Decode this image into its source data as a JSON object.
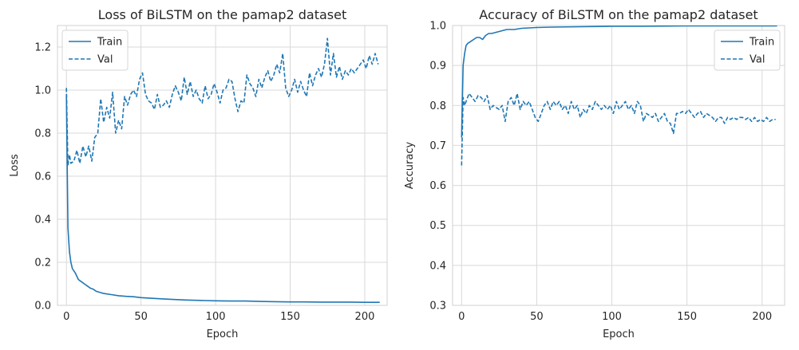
{
  "chart_data": [
    {
      "type": "line",
      "title": "Loss of BiLSTM on the pamap2 dataset",
      "xlabel": "Epoch",
      "ylabel": "Loss",
      "xlim": [
        -6,
        215
      ],
      "ylim": [
        0.0,
        1.3
      ],
      "xticks": [
        0,
        50,
        100,
        150,
        200
      ],
      "yticks": [
        0.0,
        0.2,
        0.4,
        0.6,
        0.8,
        1.0,
        1.2
      ],
      "tick_decimals": 1,
      "grid": true,
      "legend_position": "upper left",
      "series": [
        {
          "name": "Train",
          "style": "solid",
          "color": "#1f77b4",
          "x": [
            0,
            1,
            2,
            3,
            4,
            5,
            6,
            8,
            10,
            12,
            14,
            16,
            18,
            20,
            25,
            30,
            35,
            40,
            45,
            50,
            60,
            70,
            80,
            90,
            100,
            110,
            120,
            130,
            140,
            150,
            160,
            170,
            180,
            190,
            200,
            210
          ],
          "y": [
            0.98,
            0.36,
            0.25,
            0.2,
            0.17,
            0.16,
            0.15,
            0.12,
            0.11,
            0.1,
            0.09,
            0.08,
            0.075,
            0.065,
            0.055,
            0.05,
            0.045,
            0.042,
            0.04,
            0.036,
            0.032,
            0.028,
            0.025,
            0.023,
            0.021,
            0.02,
            0.02,
            0.018,
            0.017,
            0.016,
            0.016,
            0.015,
            0.015,
            0.015,
            0.014,
            0.014
          ]
        },
        {
          "name": "Val",
          "style": "dashed",
          "color": "#1f77b4",
          "x": [
            0,
            1,
            2,
            3,
            5,
            7,
            9,
            11,
            13,
            15,
            17,
            19,
            21,
            23,
            25,
            27,
            29,
            31,
            33,
            35,
            37,
            39,
            41,
            43,
            45,
            47,
            49,
            51,
            53,
            55,
            57,
            59,
            61,
            63,
            65,
            67,
            69,
            71,
            73,
            75,
            77,
            79,
            81,
            83,
            85,
            87,
            89,
            91,
            93,
            95,
            97,
            99,
            101,
            103,
            105,
            107,
            109,
            111,
            113,
            115,
            117,
            119,
            121,
            123,
            125,
            127,
            129,
            131,
            133,
            135,
            137,
            139,
            141,
            143,
            145,
            147,
            149,
            151,
            153,
            155,
            157,
            159,
            161,
            163,
            165,
            167,
            169,
            171,
            173,
            175,
            177,
            179,
            181,
            183,
            185,
            187,
            189,
            191,
            193,
            195,
            197,
            199,
            201,
            203,
            205,
            207,
            209
          ],
          "y": [
            1.01,
            0.65,
            0.7,
            0.66,
            0.67,
            0.72,
            0.66,
            0.74,
            0.69,
            0.74,
            0.67,
            0.78,
            0.8,
            0.96,
            0.85,
            0.92,
            0.87,
            0.99,
            0.8,
            0.86,
            0.82,
            0.97,
            0.93,
            0.98,
            1.0,
            0.97,
            1.05,
            1.08,
            0.98,
            0.95,
            0.94,
            0.91,
            0.98,
            0.92,
            0.93,
            0.95,
            0.92,
            0.98,
            1.02,
            0.99,
            0.95,
            1.06,
            0.98,
            1.04,
            0.97,
            1.0,
            0.96,
            0.94,
            1.02,
            0.96,
            0.98,
            1.03,
            0.99,
            0.94,
            1.0,
            1.01,
            1.05,
            1.04,
            0.96,
            0.9,
            0.95,
            0.94,
            1.07,
            1.03,
            1.01,
            0.97,
            1.05,
            1.01,
            1.06,
            1.09,
            1.04,
            1.07,
            1.12,
            1.08,
            1.17,
            1.01,
            0.97,
            1.0,
            1.05,
            0.99,
            1.04,
            1.0,
            0.97,
            1.08,
            1.02,
            1.07,
            1.1,
            1.06,
            1.12,
            1.24,
            1.07,
            1.17,
            1.06,
            1.11,
            1.05,
            1.09,
            1.07,
            1.1,
            1.08,
            1.1,
            1.12,
            1.14,
            1.1,
            1.16,
            1.12,
            1.17,
            1.12
          ]
        }
      ]
    },
    {
      "type": "line",
      "title": "Accuracy of BiLSTM on the pamap2 dataset",
      "xlabel": "Epoch",
      "ylabel": "Accuracy",
      "xlim": [
        -6,
        215
      ],
      "ylim": [
        0.3,
        1.0
      ],
      "xticks": [
        0,
        50,
        100,
        150,
        200
      ],
      "yticks": [
        0.3,
        0.4,
        0.5,
        0.6,
        0.7,
        0.8,
        0.9,
        1.0
      ],
      "tick_decimals": 1,
      "grid": true,
      "legend_position": "upper right",
      "series": [
        {
          "name": "Train",
          "style": "solid",
          "color": "#1f77b4",
          "x": [
            0,
            1,
            2,
            3,
            4,
            6,
            8,
            10,
            12,
            14,
            16,
            18,
            20,
            25,
            30,
            35,
            40,
            50,
            60,
            80,
            100,
            120,
            150,
            180,
            210
          ],
          "y": [
            0.72,
            0.9,
            0.93,
            0.95,
            0.955,
            0.96,
            0.965,
            0.97,
            0.97,
            0.965,
            0.975,
            0.98,
            0.98,
            0.985,
            0.99,
            0.99,
            0.993,
            0.995,
            0.996,
            0.997,
            0.998,
            0.998,
            0.999,
            0.999,
            0.999
          ]
        },
        {
          "name": "Val",
          "style": "dashed",
          "color": "#1f77b4",
          "x": [
            0,
            1,
            2,
            3,
            5,
            7,
            9,
            11,
            13,
            15,
            17,
            19,
            21,
            23,
            25,
            27,
            29,
            31,
            33,
            35,
            37,
            39,
            41,
            43,
            45,
            47,
            49,
            51,
            53,
            55,
            57,
            59,
            61,
            63,
            65,
            67,
            69,
            71,
            73,
            75,
            77,
            79,
            81,
            83,
            85,
            87,
            89,
            91,
            93,
            95,
            97,
            99,
            101,
            103,
            105,
            107,
            109,
            111,
            113,
            115,
            117,
            119,
            121,
            123,
            125,
            127,
            129,
            131,
            133,
            135,
            137,
            139,
            141,
            143,
            145,
            147,
            149,
            151,
            153,
            155,
            157,
            159,
            161,
            163,
            165,
            167,
            169,
            171,
            173,
            175,
            177,
            179,
            181,
            183,
            185,
            187,
            189,
            191,
            193,
            195,
            197,
            199,
            201,
            203,
            205,
            207,
            209
          ],
          "y": [
            0.65,
            0.82,
            0.8,
            0.81,
            0.83,
            0.82,
            0.81,
            0.825,
            0.82,
            0.81,
            0.825,
            0.79,
            0.8,
            0.795,
            0.79,
            0.8,
            0.76,
            0.81,
            0.82,
            0.8,
            0.83,
            0.79,
            0.81,
            0.8,
            0.81,
            0.79,
            0.77,
            0.76,
            0.78,
            0.8,
            0.81,
            0.79,
            0.81,
            0.8,
            0.81,
            0.79,
            0.8,
            0.78,
            0.81,
            0.79,
            0.8,
            0.77,
            0.79,
            0.78,
            0.8,
            0.79,
            0.81,
            0.8,
            0.79,
            0.8,
            0.79,
            0.8,
            0.78,
            0.81,
            0.79,
            0.8,
            0.81,
            0.79,
            0.8,
            0.78,
            0.81,
            0.8,
            0.76,
            0.78,
            0.775,
            0.77,
            0.78,
            0.76,
            0.77,
            0.78,
            0.76,
            0.755,
            0.73,
            0.78,
            0.78,
            0.785,
            0.78,
            0.79,
            0.78,
            0.77,
            0.78,
            0.785,
            0.77,
            0.78,
            0.775,
            0.77,
            0.76,
            0.77,
            0.77,
            0.755,
            0.77,
            0.765,
            0.77,
            0.765,
            0.77,
            0.77,
            0.765,
            0.77,
            0.76,
            0.77,
            0.76,
            0.765,
            0.76,
            0.77,
            0.76,
            0.765,
            0.765
          ]
        }
      ]
    }
  ]
}
